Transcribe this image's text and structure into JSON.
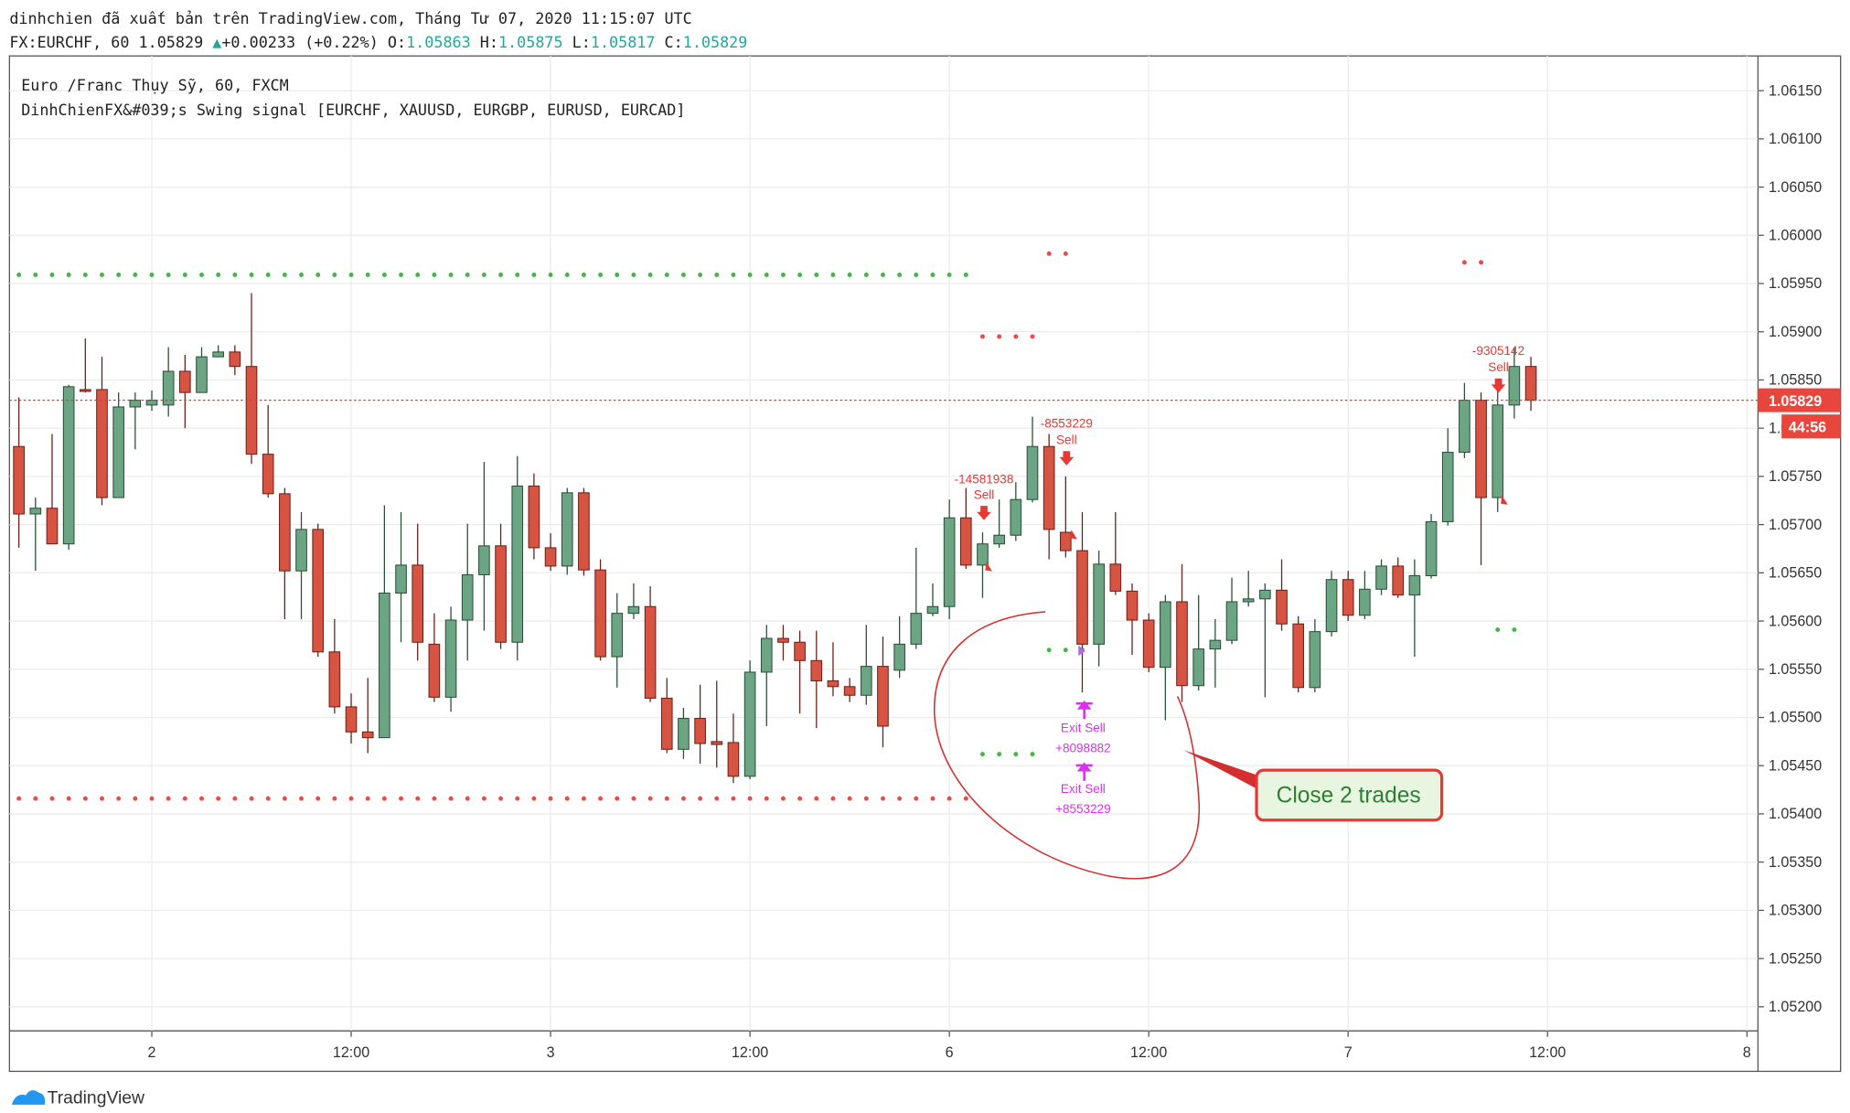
{
  "header": {
    "published": "dinhchien đã xuất bản trên TradingView.com, Tháng Tư 07, 2020 11:15:07 UTC",
    "symbol": "FX:EURCHF, 60",
    "last": "1.05829",
    "change": "+0.00233 (+0.22%)",
    "open_label": "O:",
    "open": "1.05863",
    "high_label": "H:",
    "high": "1.05875",
    "low_label": "L:",
    "low": "1.05817",
    "close_label": "C:",
    "close": "1.05829"
  },
  "footer": {
    "brand": "TradingView"
  },
  "chart_data": {
    "type": "candlestick",
    "legend": [
      "Euro /Franc Thụy Sỹ, 60, FXCM",
      "DinhChienFX&#039;s Swing signal [EURCHF, XAUUSD, EURGBP, EURUSD, EURCAD]"
    ],
    "categories": [
      null,
      null,
      null,
      null,
      null,
      null,
      null,
      null,
      "2",
      null,
      null,
      null,
      null,
      null,
      null,
      null,
      null,
      null,
      null,
      null,
      "12:00",
      null,
      null,
      null,
      null,
      null,
      null,
      null,
      null,
      null,
      null,
      null,
      "3",
      null,
      null,
      null,
      null,
      null,
      null,
      null,
      null,
      null,
      null,
      null,
      "12:00",
      null,
      null,
      null,
      null,
      null,
      null,
      null,
      null,
      null,
      null,
      null,
      "6",
      null,
      null,
      null,
      null,
      null,
      null,
      null,
      null,
      null,
      null,
      null,
      "12:00",
      null,
      null,
      null,
      null,
      null,
      null,
      null,
      null,
      null,
      null,
      null,
      "7",
      null,
      null,
      null,
      null,
      null,
      null,
      null,
      null,
      null,
      null,
      null,
      "12:00",
      null,
      null,
      null,
      null,
      null,
      null,
      null,
      null,
      null,
      null,
      null,
      "8"
    ],
    "open": [
      1.05781,
      1.05711,
      1.05717,
      1.0568,
      1.0584,
      1.0584,
      1.05728,
      1.05822,
      1.05824,
      1.05824,
      1.05859,
      1.05837,
      1.05874,
      1.05879,
      1.05864,
      1.05773,
      1.05732,
      1.05652,
      1.05695,
      1.05568,
      1.05511,
      1.05485,
      1.05479,
      1.05629,
      1.05658,
      1.05576,
      1.05521,
      1.05601,
      1.05648,
      1.05678,
      1.05578,
      1.0574,
      1.05676,
      1.05657,
      1.05733,
      1.05653,
      1.05563,
      1.05608,
      1.05615,
      1.0552,
      1.05467,
      1.05499,
      1.05475,
      1.05474,
      1.05439,
      1.05547,
      1.05582,
      1.05578,
      1.05559,
      1.05538,
      1.05532,
      1.05523,
      1.05553,
      1.05549,
      1.05576,
      1.05608,
      1.05615,
      1.05707,
      1.05658,
      1.0568,
      1.05689,
      1.05726,
      1.05781,
      1.05692,
      1.05673,
      1.05576,
      1.05659,
      1.05631,
      1.05601,
      1.05552,
      1.0562,
      1.05533,
      1.05571,
      1.0558,
      1.0562,
      1.05623,
      1.05632,
      1.05597,
      1.05531,
      1.05589,
      1.05643,
      1.05606,
      1.05633,
      1.05657,
      1.05627,
      1.05647,
      1.05703,
      1.05775,
      1.05829,
      1.05728,
      1.05824,
      1.05864,
      null,
      null,
      null,
      null,
      null,
      null,
      null,
      null,
      null,
      null,
      null,
      null,
      null
    ],
    "high": [
      1.05832,
      1.05728,
      1.05794,
      1.05845,
      1.05893,
      1.05874,
      1.05837,
      1.05837,
      1.05839,
      1.05884,
      1.05876,
      1.05884,
      1.05886,
      1.05886,
      1.0594,
      1.05824,
      1.05738,
      1.05713,
      1.05701,
      1.05602,
      1.05525,
      1.05541,
      1.0572,
      1.05713,
      1.05701,
      1.05608,
      1.05615,
      1.05701,
      1.05765,
      1.05701,
      1.05771,
      1.05753,
      1.05691,
      1.05738,
      1.05738,
      1.05664,
      1.05629,
      1.05639,
      1.05636,
      1.05541,
      1.0551,
      1.05534,
      1.05538,
      1.05504,
      1.05559,
      1.05596,
      1.05596,
      1.0559,
      1.0559,
      1.05578,
      1.05541,
      1.05596,
      1.05584,
      1.05605,
      1.05676,
      1.05639,
      1.05726,
      1.05738,
      1.05692,
      1.05726,
      1.05744,
      1.05812,
      1.05794,
      1.0575,
      1.05713,
      1.05673,
      1.05713,
      1.05639,
      1.05608,
      1.05627,
      1.05659,
      1.05627,
      1.05602,
      1.05645,
      1.05652,
      1.05639,
      1.05664,
      1.05605,
      1.05602,
      1.05652,
      1.05652,
      1.05652,
      1.05664,
      1.05666,
      1.05664,
      1.05711,
      1.058,
      1.05847,
      1.05837,
      1.05839,
      1.05884,
      1.05874,
      null,
      null,
      null,
      null,
      null,
      null,
      null,
      null,
      null,
      null,
      null,
      null,
      null
    ],
    "low": [
      1.05676,
      1.05652,
      1.0568,
      1.05674,
      1.05837,
      1.0572,
      1.05728,
      1.05778,
      1.05818,
      1.05812,
      1.058,
      1.05837,
      1.05874,
      1.05855,
      1.05763,
      1.05728,
      1.05602,
      1.05602,
      1.05563,
      1.05504,
      1.05473,
      1.05463,
      1.05479,
      1.05578,
      1.05559,
      1.05516,
      1.05506,
      1.05559,
      1.0559,
      1.05571,
      1.05559,
      1.05664,
      1.05652,
      1.05648,
      1.05647,
      1.05559,
      1.05531,
      1.05602,
      1.05516,
      1.05463,
      1.05457,
      1.05452,
      1.05448,
      1.05432,
      1.05436,
      1.05491,
      1.05559,
      1.05504,
      1.05489,
      1.05522,
      1.05516,
      1.05513,
      1.05469,
      1.05541,
      1.05571,
      1.05605,
      1.05602,
      1.05654,
      1.05624,
      1.05676,
      1.05683,
      1.05723,
      1.05664,
      1.05666,
      1.05526,
      1.05553,
      1.05627,
      1.05565,
      1.05547,
      1.05497,
      1.05516,
      1.05528,
      1.05531,
      1.05576,
      1.05615,
      1.05521,
      1.0559,
      1.05526,
      1.05526,
      1.05584,
      1.056,
      1.05602,
      1.05627,
      1.05624,
      1.05563,
      1.05644,
      1.05699,
      1.05769,
      1.05658,
      1.05713,
      1.0581,
      1.05818,
      null,
      null,
      null,
      null,
      null,
      null,
      null,
      null,
      null,
      null,
      null,
      null,
      null
    ],
    "close": [
      1.05711,
      1.05717,
      1.0568,
      1.05843,
      1.05839,
      1.05728,
      1.05822,
      1.05829,
      1.05829,
      1.05859,
      1.05837,
      1.05874,
      1.05879,
      1.05864,
      1.05773,
      1.05732,
      1.05652,
      1.05695,
      1.05568,
      1.05511,
      1.05485,
      1.05479,
      1.05629,
      1.05658,
      1.05578,
      1.05521,
      1.05601,
      1.05648,
      1.05678,
      1.05578,
      1.0574,
      1.05676,
      1.05657,
      1.05733,
      1.05653,
      1.05563,
      1.05608,
      1.05615,
      1.0552,
      1.05467,
      1.05499,
      1.05473,
      1.05472,
      1.05439,
      1.05547,
      1.05582,
      1.05578,
      1.05559,
      1.05538,
      1.05532,
      1.05523,
      1.05553,
      1.05491,
      1.05576,
      1.05608,
      1.05615,
      1.05707,
      1.05658,
      1.0568,
      1.05689,
      1.05726,
      1.05781,
      1.05695,
      1.05673,
      1.05576,
      1.05659,
      1.05631,
      1.05601,
      1.05552,
      1.0562,
      1.05533,
      1.05571,
      1.0558,
      1.0562,
      1.05623,
      1.05632,
      1.05597,
      1.05531,
      1.05589,
      1.05643,
      1.05606,
      1.05633,
      1.05657,
      1.05627,
      1.05647,
      1.05703,
      1.05775,
      1.05829,
      1.05728,
      1.05824,
      1.05864,
      1.05829,
      null,
      null,
      null,
      null,
      null,
      null,
      null,
      null,
      null,
      null,
      null,
      null,
      null
    ],
    "up_color": "#6ba583",
    "down_color": "#d75442",
    "dots": [
      {
        "color": "#43b649",
        "values": [
          1.05959,
          1.05959,
          1.05959,
          1.05959,
          1.05959,
          1.05959,
          1.05959,
          1.05959,
          1.05959,
          1.05959,
          1.05959,
          1.05959,
          1.05959,
          1.05959,
          1.05959,
          1.05959,
          1.05959,
          1.05959,
          1.05959,
          1.05959,
          1.05959,
          1.05959,
          1.05959,
          1.05959,
          1.05959,
          1.05959,
          1.05959,
          1.05959,
          1.05959,
          1.05959,
          1.05959,
          1.05959,
          1.05959,
          1.05959,
          1.05959,
          1.05959,
          1.05959,
          1.05959,
          1.05959,
          1.05959,
          1.05959,
          1.05959,
          1.05959,
          1.05959,
          1.05959,
          1.05959,
          1.05959,
          1.05959,
          1.05959,
          1.05959,
          1.05959,
          1.05959,
          1.05959,
          1.05959,
          1.05959,
          1.05959,
          1.05959,
          1.05959,
          1.05462,
          1.05462,
          1.05462,
          1.05462,
          1.0557,
          1.0557,
          1.0557,
          null,
          null,
          null,
          null,
          null,
          null,
          null,
          null,
          null,
          null,
          null,
          null,
          null,
          null,
          null,
          null,
          null,
          null,
          null,
          null,
          null,
          null,
          null,
          null,
          1.05591,
          1.05591,
          null,
          null,
          null,
          null,
          null,
          null,
          null,
          null,
          null,
          null,
          null,
          null,
          null,
          null
        ]
      },
      {
        "color": "#f04848",
        "values": [
          1.05416,
          1.05416,
          1.05416,
          1.05416,
          1.05416,
          1.05416,
          1.05416,
          1.05416,
          1.05416,
          1.05416,
          1.05416,
          1.05416,
          1.05416,
          1.05416,
          1.05416,
          1.05416,
          1.05416,
          1.05416,
          1.05416,
          1.05416,
          1.05416,
          1.05416,
          1.05416,
          1.05416,
          1.05416,
          1.05416,
          1.05416,
          1.05416,
          1.05416,
          1.05416,
          1.05416,
          1.05416,
          1.05416,
          1.05416,
          1.05416,
          1.05416,
          1.05416,
          1.05416,
          1.05416,
          1.05416,
          1.05416,
          1.05416,
          1.05416,
          1.05416,
          1.05416,
          1.05416,
          1.05416,
          1.05416,
          1.05416,
          1.05416,
          1.05416,
          1.05416,
          1.05416,
          1.05416,
          1.05416,
          1.05416,
          1.05416,
          1.05416,
          1.05895,
          1.05895,
          1.05895,
          1.05895,
          1.05981,
          1.05981,
          null,
          null,
          null,
          null,
          null,
          null,
          null,
          null,
          null,
          null,
          null,
          null,
          null,
          null,
          null,
          null,
          null,
          null,
          null,
          null,
          null,
          null,
          null,
          1.05972,
          1.05972,
          null,
          null,
          null,
          null,
          null,
          null,
          null,
          null,
          null,
          null,
          null,
          null,
          null,
          null
        ]
      }
    ],
    "signals": [
      {
        "amount": "-14581938",
        "action": "Sell"
      },
      {
        "amount": "-8553229",
        "action": "Sell"
      },
      {
        "action": "Exit Sell",
        "amount": "+8098882"
      },
      {
        "action": "Exit Sell",
        "amount": "+8553229"
      },
      {
        "amount": "-9305142",
        "action": "Sell"
      }
    ],
    "annotation": "Close 2 trades",
    "price_label": "1.05829",
    "countdown": "44:56",
    "ylim": [
      1.05175,
      1.06186
    ],
    "yticks": [
      {
        "value": 1.052,
        "label": "1.05200"
      },
      {
        "value": 1.0525,
        "label": "1.05250"
      },
      {
        "value": 1.053,
        "label": "1.05300"
      },
      {
        "value": 1.0535,
        "label": "1.05350"
      },
      {
        "value": 1.054,
        "label": "1.05400"
      },
      {
        "value": 1.0545,
        "label": "1.05450"
      },
      {
        "value": 1.055,
        "label": "1.05500"
      },
      {
        "value": 1.0555,
        "label": "1.05550"
      },
      {
        "value": 1.056,
        "label": "1.05600"
      },
      {
        "value": 1.0565,
        "label": "1.05650"
      },
      {
        "value": 1.057,
        "label": "1.05700"
      },
      {
        "value": 1.0575,
        "label": "1.05750"
      },
      {
        "value": 1.058,
        "label": "1.05800"
      },
      {
        "value": 1.0585,
        "label": "1.05850"
      },
      {
        "value": 1.059,
        "label": "1.05900"
      },
      {
        "value": 1.0595,
        "label": "1.05950"
      },
      {
        "value": 1.06,
        "label": "1.06000"
      },
      {
        "value": 1.0605,
        "label": "1.06050"
      },
      {
        "value": 1.061,
        "label": "1.06100"
      },
      {
        "value": 1.0615,
        "label": "1.06150"
      }
    ],
    "grid": true
  }
}
